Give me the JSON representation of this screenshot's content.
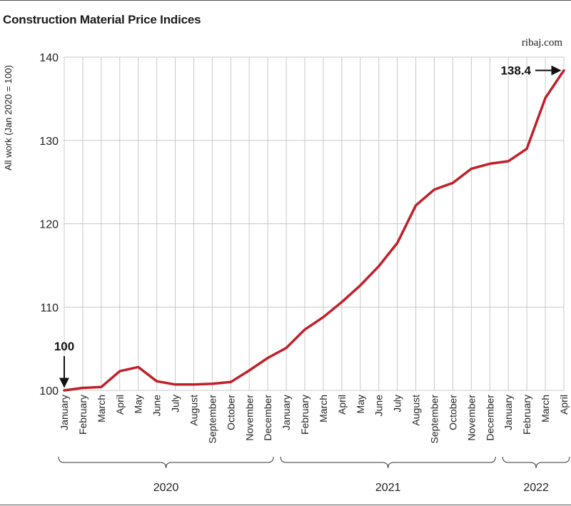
{
  "title": "Construction Material Price Indices",
  "source": "ribaj.com",
  "chart_data": {
    "type": "line",
    "ylabel": "All work (Jan 2020 = 100)",
    "ylim": [
      100,
      140
    ],
    "yticks": [
      100,
      110,
      120,
      130,
      140
    ],
    "grid": true,
    "x": [
      "January",
      "February",
      "March",
      "April",
      "May",
      "June",
      "July",
      "August",
      "September",
      "October",
      "November",
      "December",
      "January",
      "February",
      "March",
      "April",
      "May",
      "June",
      "July",
      "August",
      "September",
      "October",
      "November",
      "December",
      "January",
      "February",
      "March",
      "April"
    ],
    "years": [
      {
        "label": "2020",
        "start": 0,
        "end": 11
      },
      {
        "label": "2021",
        "start": 12,
        "end": 23
      },
      {
        "label": "2022",
        "start": 24,
        "end": 27
      }
    ],
    "series": [
      {
        "color": "#c0202a",
        "values": [
          100.0,
          100.3,
          100.4,
          102.3,
          102.8,
          101.1,
          100.7,
          100.7,
          100.8,
          101.0,
          102.4,
          103.9,
          105.1,
          107.3,
          108.8,
          110.6,
          112.6,
          114.9,
          117.7,
          122.2,
          124.1,
          124.9,
          126.6,
          127.2,
          127.5,
          129.0,
          135.1,
          138.4
        ]
      }
    ],
    "annotations": [
      {
        "label": "100",
        "index": 0,
        "value": 100.0,
        "position": "above"
      },
      {
        "label": "138.4",
        "index": 27,
        "value": 138.4,
        "position": "left"
      }
    ]
  }
}
